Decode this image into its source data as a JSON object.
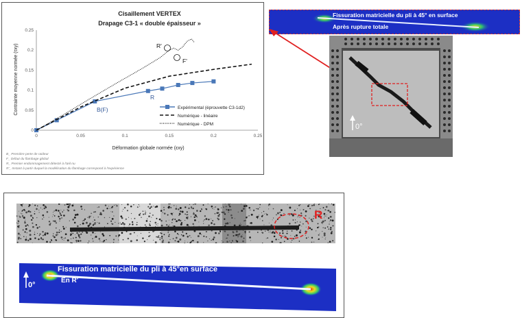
{
  "chart_panel": {
    "title_line1": "Cisaillement VERTEX",
    "title_line2": "Drapage C3-1 « double épaisseur »",
    "annotations": {
      "r_prime": "R'",
      "f_prime": "F'",
      "b_f": "B(F)",
      "r": "R"
    },
    "notes": [
      "B_ Première perte de raideur",
      "F_ Début du flambage global",
      "R_ Premier endommagement détecté à l'œil nu",
      "R'_ Instant à partir duquel la modélisation du flambage correspond à l'expérience"
    ]
  },
  "chart_data": {
    "type": "line",
    "title": "Cisaillement VERTEX\nDrapage C3-1 « double épaisseur »",
    "xlabel": "Déformation globale normée (εxy)",
    "ylabel": "Contrainte moyenne normée (τxy)",
    "xlim": [
      0,
      0.25
    ],
    "ylim": [
      0,
      0.25
    ],
    "xticks": [
      "0",
      "0.05",
      "0.1",
      "0.15",
      "0.2",
      "0.25"
    ],
    "yticks": [
      "0",
      "0.05",
      "0.1",
      "0.15",
      "0.2",
      "0.25"
    ],
    "legend_position": "center-right",
    "series": [
      {
        "name": "Expérimental (éprouvette C3-1d2)",
        "style": "solid-markers",
        "color": "#4a78b8",
        "x": [
          0,
          0.023,
          0.066,
          0.126,
          0.142,
          0.16,
          0.176,
          0.2
        ],
        "y": [
          0,
          0.025,
          0.072,
          0.098,
          0.104,
          0.113,
          0.118,
          0.122
        ]
      },
      {
        "name": "Numérique - linéaire",
        "style": "dashed",
        "color": "#111111",
        "x": [
          0,
          0.05,
          0.1,
          0.15,
          0.2,
          0.243
        ],
        "y": [
          0,
          0.058,
          0.105,
          0.135,
          0.152,
          0.165
        ]
      },
      {
        "name": "Numérique - DPM",
        "style": "dotted",
        "color": "#111111",
        "x": [
          0,
          0.03,
          0.06,
          0.09,
          0.12,
          0.14,
          0.15,
          0.155,
          0.16,
          0.165,
          0.17,
          0.175,
          0.178
        ],
        "y": [
          0,
          0.038,
          0.078,
          0.117,
          0.155,
          0.182,
          0.2,
          0.205,
          0.2,
          0.208,
          0.222,
          0.228,
          0.22
        ]
      }
    ]
  },
  "top_sim": {
    "label1": "Fissuration matricielle du pli à 45° en surface",
    "label2": "Après rupture totale"
  },
  "photo": {
    "orientation_label": "0°"
  },
  "bottom_panel": {
    "r_label": "R",
    "sim_label1": "Fissuration matricielle du pli à 45°en surface",
    "sim_label2": "En R'",
    "orientation_label": "0°"
  },
  "colors": {
    "accent": "#4a78b8",
    "highlight": "#e02020",
    "sim_blue": "#1c2fc4"
  }
}
